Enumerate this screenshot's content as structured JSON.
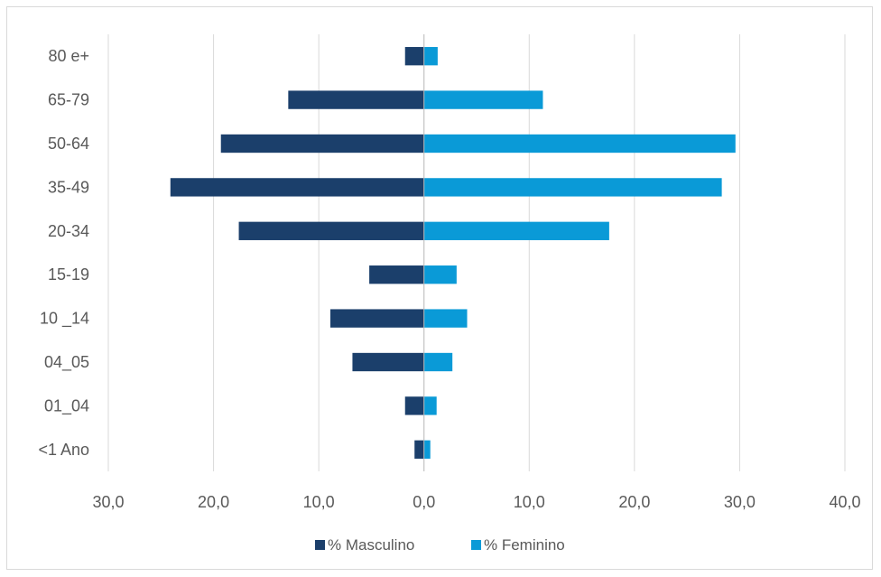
{
  "chart_data": {
    "type": "bar",
    "orientation": "horizontal",
    "categories": [
      "80 e+",
      "65-79",
      "50-64",
      "35-49",
      "20-34",
      "15-19",
      "10 _14",
      "04_05",
      "01_04",
      "<1 Ano"
    ],
    "series": [
      {
        "name": "% Masculino",
        "color": "#1b3f6b",
        "values": [
          1.8,
          12.9,
          19.3,
          24.1,
          17.6,
          5.2,
          8.9,
          6.8,
          1.8,
          0.9
        ]
      },
      {
        "name": "% Feminino",
        "color": "#0a9ad7",
        "values": [
          1.3,
          11.3,
          29.6,
          28.3,
          17.6,
          3.1,
          4.1,
          2.7,
          1.2,
          0.6
        ]
      }
    ],
    "xlim": [
      -30,
      40
    ],
    "x_ticks": [
      -30,
      -20,
      -10,
      0,
      10,
      20,
      30,
      40
    ],
    "x_tick_labels": [
      "30,0",
      "20,0",
      "10,0",
      "0,0",
      "10,0",
      "20,0",
      "30,0",
      "40,0"
    ],
    "grid": "vertical",
    "legend_position": "bottom",
    "colors": {
      "grid": "#d9d9d9",
      "text": "#595959"
    }
  }
}
